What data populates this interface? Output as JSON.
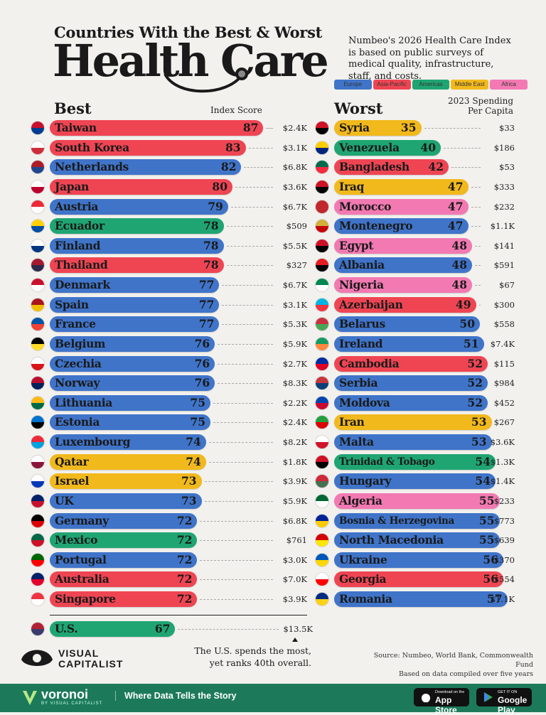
{
  "header": {
    "title_line1": "Countries With the Best & Worst",
    "title_line2": "Health Care",
    "intro": "Numbeo's 2026 Health Care Index is based on public surveys of medical quality, infrastructure, staff, and costs."
  },
  "legend": [
    {
      "label": "Europe",
      "color": "#3f74c9"
    },
    {
      "label": "Asia-Pacific",
      "color": "#ef4553"
    },
    {
      "label": "Americas",
      "color": "#1fa572"
    },
    {
      "label": "Middle East",
      "color": "#f2b91c"
    },
    {
      "label": "Africa",
      "color": "#f279b2"
    }
  ],
  "columns": {
    "best_title": "Best",
    "index_label": "Index Score",
    "worst_title": "Worst",
    "spending_label_1": "2023 Spending",
    "spending_label_2": "Per Capita"
  },
  "chart_data": {
    "type": "bar",
    "region_colors": {
      "Europe": "#3f74c9",
      "Asia-Pacific": "#ef4553",
      "Americas": "#1fa572",
      "Middle East": "#f2b91c",
      "Africa": "#f279b2"
    },
    "best": [
      {
        "country": "Taiwan",
        "score": 87,
        "spending": "$2.4K",
        "region": "Asia-Pacific"
      },
      {
        "country": "South Korea",
        "score": 83,
        "spending": "$3.1K",
        "region": "Asia-Pacific"
      },
      {
        "country": "Netherlands",
        "score": 82,
        "spending": "$6.8K",
        "region": "Europe"
      },
      {
        "country": "Japan",
        "score": 80,
        "spending": "$3.6K",
        "region": "Asia-Pacific"
      },
      {
        "country": "Austria",
        "score": 79,
        "spending": "$6.7K",
        "region": "Europe"
      },
      {
        "country": "Ecuador",
        "score": 78,
        "spending": "$509",
        "region": "Americas"
      },
      {
        "country": "Finland",
        "score": 78,
        "spending": "$5.5K",
        "region": "Europe"
      },
      {
        "country": "Thailand",
        "score": 78,
        "spending": "$327",
        "region": "Asia-Pacific"
      },
      {
        "country": "Denmark",
        "score": 77,
        "spending": "$6.7K",
        "region": "Europe"
      },
      {
        "country": "Spain",
        "score": 77,
        "spending": "$3.1K",
        "region": "Europe"
      },
      {
        "country": "France",
        "score": 77,
        "spending": "$5.3K",
        "region": "Europe"
      },
      {
        "country": "Belgium",
        "score": 76,
        "spending": "$5.9K",
        "region": "Europe"
      },
      {
        "country": "Czechia",
        "score": 76,
        "spending": "$2.7K",
        "region": "Europe"
      },
      {
        "country": "Norway",
        "score": 76,
        "spending": "$8.3K",
        "region": "Europe"
      },
      {
        "country": "Lithuania",
        "score": 75,
        "spending": "$2.2K",
        "region": "Europe"
      },
      {
        "country": "Estonia",
        "score": 75,
        "spending": "$2.4K",
        "region": "Europe"
      },
      {
        "country": "Luxembourg",
        "score": 74,
        "spending": "$8.2K",
        "region": "Europe"
      },
      {
        "country": "Qatar",
        "score": 74,
        "spending": "$1.8K",
        "region": "Middle East"
      },
      {
        "country": "Israel",
        "score": 73,
        "spending": "$3.9K",
        "region": "Middle East"
      },
      {
        "country": "UK",
        "score": 73,
        "spending": "$5.9K",
        "region": "Europe"
      },
      {
        "country": "Germany",
        "score": 72,
        "spending": "$6.8K",
        "region": "Europe"
      },
      {
        "country": "Mexico",
        "score": 72,
        "spending": "$761",
        "region": "Americas"
      },
      {
        "country": "Portugal",
        "score": 72,
        "spending": "$3.0K",
        "region": "Europe"
      },
      {
        "country": "Australia",
        "score": 72,
        "spending": "$7.0K",
        "region": "Asia-Pacific"
      },
      {
        "country": "Singapore",
        "score": 72,
        "spending": "$3.9K",
        "region": "Asia-Pacific"
      }
    ],
    "us": {
      "country": "U.S.",
      "score": 67,
      "spending": "$13.5K",
      "region": "Americas"
    },
    "worst": [
      {
        "country": "Syria",
        "score": 35,
        "spending": "$33",
        "region": "Middle East"
      },
      {
        "country": "Venezuela",
        "score": 40,
        "spending": "$186",
        "region": "Americas"
      },
      {
        "country": "Bangladesh",
        "score": 42,
        "spending": "$53",
        "region": "Asia-Pacific"
      },
      {
        "country": "Iraq",
        "score": 47,
        "spending": "$333",
        "region": "Middle East"
      },
      {
        "country": "Morocco",
        "score": 47,
        "spending": "$232",
        "region": "Africa"
      },
      {
        "country": "Montenegro",
        "score": 47,
        "spending": "$1.1K",
        "region": "Europe"
      },
      {
        "country": "Egypt",
        "score": 48,
        "spending": "$141",
        "region": "Africa"
      },
      {
        "country": "Albania",
        "score": 48,
        "spending": "$591",
        "region": "Europe"
      },
      {
        "country": "Nigeria",
        "score": 48,
        "spending": "$67",
        "region": "Africa"
      },
      {
        "country": "Azerbaijan",
        "score": 49,
        "spending": "$300",
        "region": "Asia-Pacific"
      },
      {
        "country": "Belarus",
        "score": 50,
        "spending": "$558",
        "region": "Europe"
      },
      {
        "country": "Ireland",
        "score": 51,
        "spending": "$7.4K",
        "region": "Europe"
      },
      {
        "country": "Cambodia",
        "score": 52,
        "spending": "$115",
        "region": "Asia-Pacific"
      },
      {
        "country": "Serbia",
        "score": 52,
        "spending": "$984",
        "region": "Europe"
      },
      {
        "country": "Moldova",
        "score": 52,
        "spending": "$452",
        "region": "Europe"
      },
      {
        "country": "Iran",
        "score": 53,
        "spending": "$267",
        "region": "Middle East"
      },
      {
        "country": "Malta",
        "score": 53,
        "spending": "$3.6K",
        "region": "Europe"
      },
      {
        "country": "Trinidad & Tobago",
        "score": 54,
        "spending": "$1.3K",
        "region": "Americas"
      },
      {
        "country": "Hungary",
        "score": 54,
        "spending": "$1.4K",
        "region": "Europe"
      },
      {
        "country": "Algeria",
        "score": 55,
        "spending": "$233",
        "region": "Africa"
      },
      {
        "country": "Bosnia & Herzegovina",
        "score": 55,
        "spending": "$773",
        "region": "Europe"
      },
      {
        "country": "North Macedonia",
        "score": 55,
        "spending": "$639",
        "region": "Europe"
      },
      {
        "country": "Ukraine",
        "score": 56,
        "spending": "$370",
        "region": "Europe"
      },
      {
        "country": "Georgia",
        "score": 56,
        "spending": "$554",
        "region": "Asia-Pacific"
      },
      {
        "country": "Romania",
        "score": 57,
        "spending": "$1.1K",
        "region": "Europe"
      }
    ],
    "flags": {
      "Taiwan": [
        "#c8102e",
        "#003d8f"
      ],
      "South Korea": [
        "#ffffff",
        "#cd2e3a"
      ],
      "Netherlands": [
        "#ae1c28",
        "#21468b"
      ],
      "Japan": [
        "#ffffff",
        "#bc002d"
      ],
      "Austria": [
        "#ed2939",
        "#ffffff"
      ],
      "Ecuador": [
        "#ffd100",
        "#034ea2"
      ],
      "Finland": [
        "#ffffff",
        "#003580"
      ],
      "Thailand": [
        "#a51931",
        "#2d2a4a"
      ],
      "Denmark": [
        "#c8102e",
        "#ffffff"
      ],
      "Spain": [
        "#aa151b",
        "#f1bf00"
      ],
      "France": [
        "#0055a4",
        "#ef4135"
      ],
      "Belgium": [
        "#000000",
        "#fdda24"
      ],
      "Czechia": [
        "#ffffff",
        "#d7141a"
      ],
      "Norway": [
        "#ba0c2f",
        "#00205b"
      ],
      "Lithuania": [
        "#fdb913",
        "#006a44"
      ],
      "Estonia": [
        "#0072ce",
        "#000000"
      ],
      "Luxembourg": [
        "#ed2939",
        "#00a1de"
      ],
      "Qatar": [
        "#ffffff",
        "#8a1538"
      ],
      "Israel": [
        "#ffffff",
        "#0038b8"
      ],
      "UK": [
        "#012169",
        "#c8102e"
      ],
      "Germany": [
        "#000000",
        "#dd0000"
      ],
      "Mexico": [
        "#006847",
        "#ce1126"
      ],
      "Portugal": [
        "#006600",
        "#ff0000"
      ],
      "Australia": [
        "#012169",
        "#e4002b"
      ],
      "Singapore": [
        "#ef3340",
        "#ffffff"
      ],
      "U.S.": [
        "#b22234",
        "#3c3b6e"
      ],
      "Syria": [
        "#ce1126",
        "#000000"
      ],
      "Venezuela": [
        "#ffcc00",
        "#00247d"
      ],
      "Bangladesh": [
        "#006a4e",
        "#f42a41"
      ],
      "Iraq": [
        "#ce1126",
        "#000000"
      ],
      "Morocco": [
        "#c1272d",
        "#c1272d"
      ],
      "Montenegro": [
        "#d3ae3b",
        "#c40308"
      ],
      "Egypt": [
        "#ce1126",
        "#000000"
      ],
      "Albania": [
        "#e41e20",
        "#000000"
      ],
      "Nigeria": [
        "#008751",
        "#ffffff"
      ],
      "Azerbaijan": [
        "#00b5e2",
        "#ef3340"
      ],
      "Belarus": [
        "#c8313e",
        "#4aa657"
      ],
      "Ireland": [
        "#169b62",
        "#ff883e"
      ],
      "Cambodia": [
        "#032ea1",
        "#e00025"
      ],
      "Serbia": [
        "#c6363c",
        "#0c4076"
      ],
      "Moldova": [
        "#0046ae",
        "#cc092f"
      ],
      "Iran": [
        "#239f40",
        "#da0000"
      ],
      "Malta": [
        "#ffffff",
        "#cf142b"
      ],
      "Trinidad & Tobago": [
        "#ce1126",
        "#000000"
      ],
      "Hungary": [
        "#ce2939",
        "#477050"
      ],
      "Algeria": [
        "#006633",
        "#ffffff"
      ],
      "Bosnia & Herzegovina": [
        "#002395",
        "#fecb00"
      ],
      "North Macedonia": [
        "#d20000",
        "#ffe600"
      ],
      "Ukraine": [
        "#0057b7",
        "#ffd700"
      ],
      "Georgia": [
        "#ffffff",
        "#ff0000"
      ],
      "Romania": [
        "#002b7f",
        "#fcd116"
      ]
    }
  },
  "us_note": "The U.S. spends the most, yet ranks 40th overall.",
  "source_line1": "Source: Numbeo, World Bank, Commonwealth Fund",
  "source_line2": "Based on data compiled over five years",
  "logo": {
    "line1": "VISUAL",
    "line2": "CAPITALIST"
  },
  "footer": {
    "brand": "voronoi",
    "brand_sub": "BY VISUAL CAPITALIST",
    "tagline": "Where Data Tells the Story",
    "appstore_small": "Download on the",
    "appstore_big": "App Store",
    "googleplay_small": "GET IT ON",
    "googleplay_big": "Google Play"
  }
}
